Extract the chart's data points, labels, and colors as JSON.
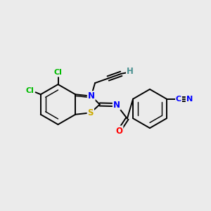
{
  "background_color": "#ebebeb",
  "figsize": [
    3.0,
    3.0
  ],
  "dpi": 100,
  "atom_colors": {
    "C": "#000000",
    "N": "#0000ff",
    "O": "#ff0000",
    "S": "#ccaa00",
    "Cl": "#00bb00",
    "H": "#4a9090",
    "CN_label": "#0000ff"
  },
  "bond_color": "#000000",
  "bond_width": 1.4,
  "font_size_atoms": 8.5,
  "aromatic_inner_ratio": 0.72
}
